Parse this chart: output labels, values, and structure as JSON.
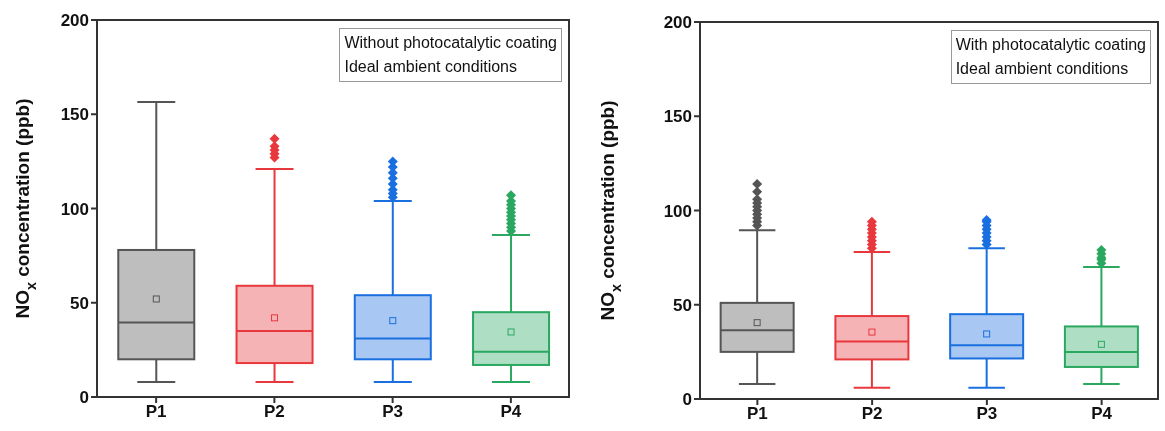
{
  "chart_data": [
    {
      "type": "box",
      "ylabel": "NO$_{x}$ concentration (ppb)",
      "categories": [
        "P1",
        "P2",
        "P3",
        "P4"
      ],
      "colors": [
        "#555555",
        "#e8383d",
        "#1a6fe0",
        "#2aa860"
      ],
      "boxes": [
        {
          "low": 8,
          "q1": 20,
          "median": 39.5,
          "q3": 78,
          "high": 156.5,
          "mean": 52
        },
        {
          "low": 8,
          "q1": 18,
          "median": 35,
          "q3": 59,
          "high": 121,
          "mean": 42,
          "outliers": [
            127,
            129,
            131,
            133,
            137
          ]
        },
        {
          "low": 8,
          "q1": 20,
          "median": 31,
          "q3": 54,
          "high": 104,
          "mean": 40.5,
          "outliers": [
            106,
            108,
            110,
            113,
            116,
            119,
            122,
            125
          ]
        },
        {
          "low": 8,
          "q1": 17,
          "median": 24,
          "q3": 45,
          "high": 86,
          "mean": 34.5,
          "outliers": [
            88,
            90,
            92,
            94,
            96,
            98,
            100,
            102,
            104,
            107
          ]
        }
      ],
      "ylim": [
        0,
        200
      ],
      "yticks": [
        0,
        50,
        100,
        150,
        200
      ],
      "annotations": [
        "Without photocatalytic coating",
        "Ideal ambient conditions"
      ]
    },
    {
      "type": "box",
      "ylabel": "NO$_{x}$ concentration (ppb)",
      "categories": [
        "P1",
        "P2",
        "P3",
        "P4"
      ],
      "colors": [
        "#555555",
        "#e8383d",
        "#1a6fe0",
        "#2aa860"
      ],
      "boxes": [
        {
          "low": 8,
          "q1": 25,
          "median": 36.5,
          "q3": 51,
          "high": 89.5,
          "mean": 40.5,
          "outliers": [
            92,
            94,
            96,
            98,
            100,
            102,
            104,
            106,
            110,
            114
          ]
        },
        {
          "low": 6,
          "q1": 21,
          "median": 30.5,
          "q3": 44,
          "high": 78,
          "mean": 35.5,
          "outliers": [
            80,
            82,
            84,
            86,
            88,
            90,
            92,
            94
          ]
        },
        {
          "low": 6,
          "q1": 21.5,
          "median": 28.5,
          "q3": 45,
          "high": 80,
          "mean": 34.5,
          "outliers": [
            82,
            84,
            86,
            88,
            90,
            92,
            94,
            95
          ]
        },
        {
          "low": 8,
          "q1": 17,
          "median": 25,
          "q3": 38.5,
          "high": 70,
          "mean": 29,
          "outliers": [
            72,
            74,
            75,
            77,
            79
          ]
        }
      ],
      "ylim": [
        0,
        200
      ],
      "yticks": [
        0,
        50,
        100,
        150,
        200
      ],
      "annotations": [
        "With photocatalytic coating",
        "Ideal ambient conditions"
      ]
    }
  ]
}
